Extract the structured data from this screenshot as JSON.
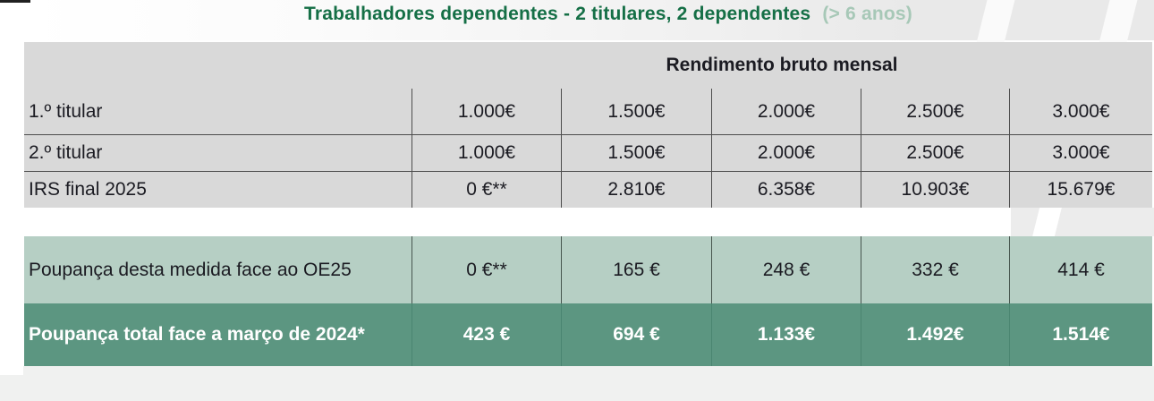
{
  "title": {
    "main": "Trabalhadores dependentes - 2 titulares, 2 dependentes",
    "suffix": "(> 6 anos)"
  },
  "chart_data": {
    "type": "table",
    "title": "Trabalhadores dependentes - 2 titulares, 2 dependentes (> 6 anos)",
    "column_group_header": "Rendimento bruto mensal",
    "rows": [
      {
        "label": "1.º titular",
        "values": [
          "1.000€",
          "1.500€",
          "2.000€",
          "2.500€",
          "3.000€"
        ]
      },
      {
        "label": "2.º titular",
        "values": [
          "1.000€",
          "1.500€",
          "2.000€",
          "2.500€",
          "3.000€"
        ]
      },
      {
        "label": "IRS final 2025",
        "values": [
          "0 €**",
          "2.810€",
          "6.358€",
          "10.903€",
          "15.679€"
        ]
      },
      {
        "label": "Poupança desta medida face ao OE25",
        "values": [
          "0 €**",
          "165 €",
          "248 €",
          "332 €",
          "414 €"
        ]
      },
      {
        "label": "Poupança total face a março de 2024*",
        "values": [
          "423 €",
          "694 €",
          "1.133€",
          "1.492€",
          "1.514€"
        ]
      }
    ]
  },
  "colors": {
    "title_green": "#156f46",
    "title_light_green": "#a7c8b7",
    "table_bg": "#d9d9d9",
    "light_row_bg": "#b6cfc4",
    "dark_row_bg": "#5c9681",
    "divider": "#4d4d4d",
    "text": "#1b1b22",
    "dark_row_text": "#ffffff"
  }
}
